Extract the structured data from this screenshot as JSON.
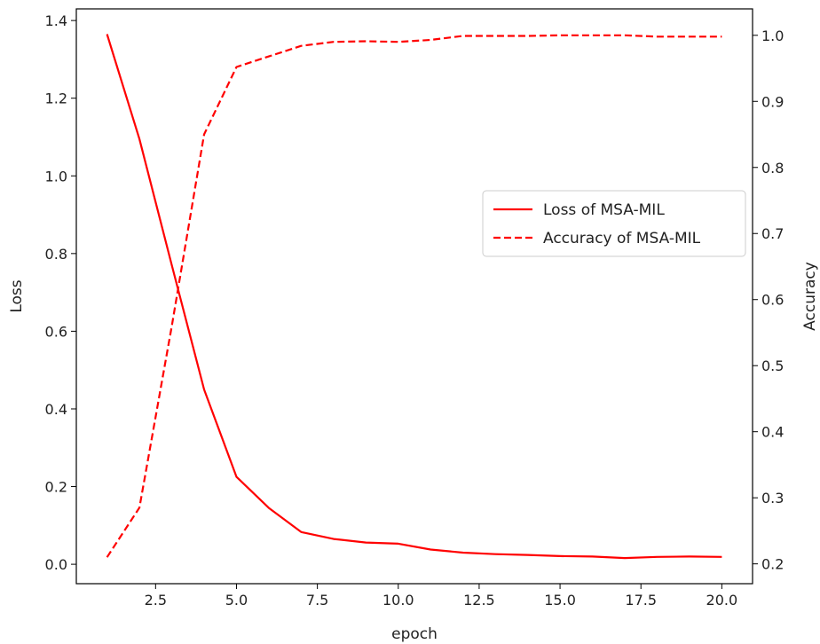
{
  "chart_data": {
    "type": "line",
    "xlabel": "epoch",
    "ylabel_left": "Loss",
    "ylabel_right": "Accuracy",
    "xlim": [
      0.05,
      20.95
    ],
    "ylim_left": [
      -0.05,
      1.43
    ],
    "ylim_right": [
      0.17,
      1.04
    ],
    "x_ticks": [
      2.5,
      5.0,
      7.5,
      10.0,
      12.5,
      15.0,
      17.5,
      20.0
    ],
    "x_tick_labels": [
      "2.5",
      "5.0",
      "7.5",
      "10.0",
      "12.5",
      "15.0",
      "17.5",
      "20.0"
    ],
    "y_left_ticks": [
      0.0,
      0.2,
      0.4,
      0.6,
      0.8,
      1.0,
      1.2,
      1.4
    ],
    "y_left_tick_labels": [
      "0.0",
      "0.2",
      "0.4",
      "0.6",
      "0.8",
      "1.0",
      "1.2",
      "1.4"
    ],
    "y_right_ticks": [
      0.2,
      0.3,
      0.4,
      0.5,
      0.6,
      0.7,
      0.8,
      0.9,
      1.0
    ],
    "y_right_tick_labels": [
      "0.2",
      "0.3",
      "0.4",
      "0.5",
      "0.6",
      "0.7",
      "0.8",
      "0.9",
      "1.0"
    ],
    "grid": false,
    "legend_position": "center-right",
    "x": [
      1,
      2,
      3,
      4,
      5,
      6,
      7,
      8,
      9,
      10,
      11,
      12,
      13,
      14,
      15,
      16,
      17,
      18,
      19,
      20
    ],
    "series": [
      {
        "name": "Loss of MSA-MIL",
        "axis": "left",
        "color": "#ff0000",
        "style": "solid",
        "values": [
          1.365,
          1.095,
          0.77,
          0.45,
          0.225,
          0.145,
          0.083,
          0.065,
          0.056,
          0.053,
          0.038,
          0.03,
          0.026,
          0.024,
          0.021,
          0.02,
          0.016,
          0.019,
          0.02,
          0.019
        ]
      },
      {
        "name": "Accuracy of MSA-MIL",
        "axis": "right",
        "color": "#ff0000",
        "style": "dashed",
        "values": [
          0.21,
          0.285,
          0.56,
          0.85,
          0.952,
          0.968,
          0.984,
          0.99,
          0.991,
          0.99,
          0.993,
          0.999,
          0.999,
          0.999,
          1.0,
          1.0,
          1.0,
          0.998,
          0.998,
          0.998
        ]
      }
    ]
  }
}
